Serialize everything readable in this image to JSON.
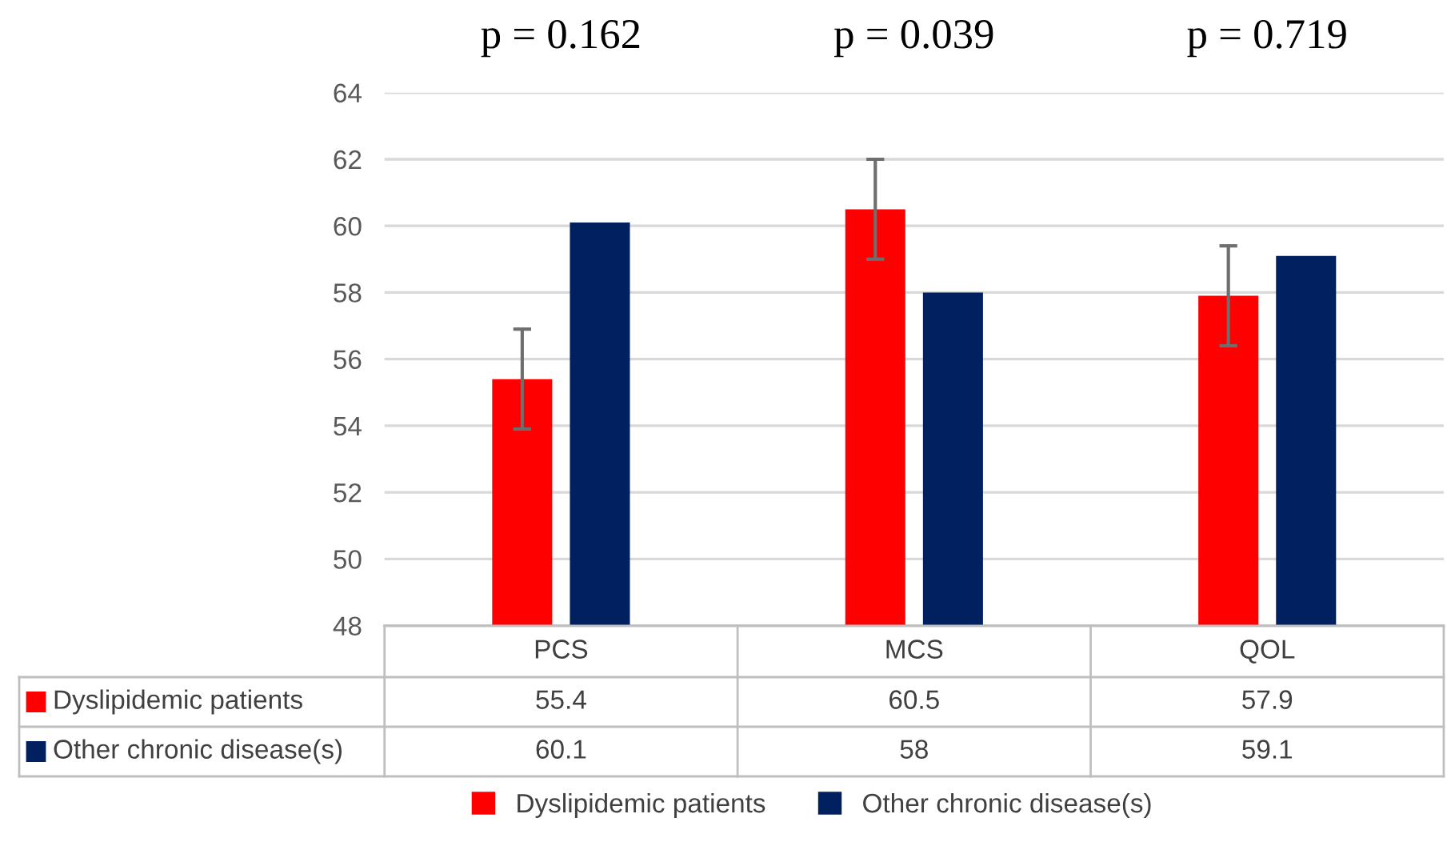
{
  "chart_data": {
    "type": "bar",
    "categories": [
      "PCS",
      "MCS",
      "QOL"
    ],
    "series": [
      {
        "name": "Dyslipidemic patients",
        "color": "#ff0000",
        "values": [
          55.4,
          60.5,
          57.9
        ],
        "errors": [
          1.5,
          1.5,
          1.5
        ]
      },
      {
        "name": "Other chronic disease(s)",
        "color": "#002060",
        "values": [
          60.1,
          58,
          59.1
        ]
      }
    ],
    "ylim": [
      48,
      64
    ],
    "yticks": [
      48,
      50,
      52,
      54,
      56,
      58,
      60,
      62,
      64
    ],
    "grid": "y",
    "legend": "bottom",
    "data_labels": true,
    "annotations": [
      "p = 0.162",
      "p = 0.039",
      "p = 0.719"
    ]
  }
}
